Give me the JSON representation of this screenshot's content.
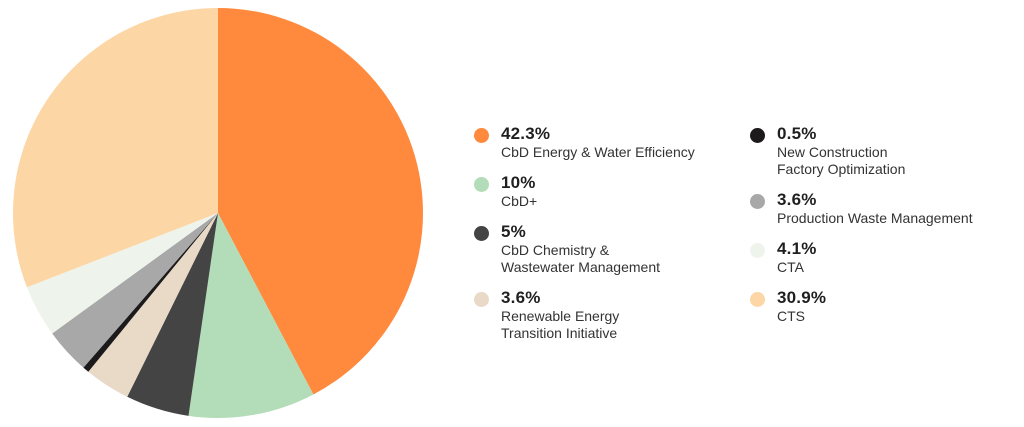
{
  "chart_data": {
    "type": "pie",
    "start_angle_deg": 0,
    "direction": "clockwise",
    "slices": [
      {
        "value": 42.3,
        "value_label": "42.3%",
        "label": "CbD Energy & Water Efficiency",
        "color": "#FF8A3D"
      },
      {
        "value": 10,
        "value_label": "10%",
        "label": "CbD+",
        "color": "#B3DDB8"
      },
      {
        "value": 5,
        "value_label": "5%",
        "label": "CbD Chemistry &\nWastewater Management",
        "color": "#444444"
      },
      {
        "value": 3.6,
        "value_label": "3.6%",
        "label": "Renewable Energy\nTransition Initiative",
        "color": "#E8DAC6"
      },
      {
        "value": 0.5,
        "value_label": "0.5%",
        "label": "New Construction\nFactory Optimization",
        "color": "#1C1A1B"
      },
      {
        "value": 3.6,
        "value_label": "3.6%",
        "label": "Production Waste Management",
        "color": "#A8A8A8"
      },
      {
        "value": 4.1,
        "value_label": "4.1%",
        "label": "CTA",
        "color": "#EEF4EC"
      },
      {
        "value": 30.9,
        "value_label": "30.9%",
        "label": "CTS",
        "color": "#FDD6A5"
      }
    ],
    "legend_placement": "right"
  },
  "legend": {
    "left_column": [
      0,
      1,
      2,
      3
    ],
    "right_column": [
      4,
      5,
      6,
      7
    ]
  }
}
